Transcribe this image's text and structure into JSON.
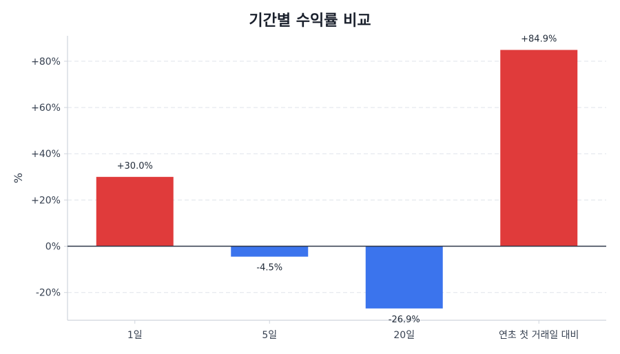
{
  "chart_data": {
    "type": "bar",
    "title": "기간별 수익률 비교",
    "xlabel": "",
    "ylabel": "%",
    "categories": [
      "1일",
      "5일",
      "20일",
      "연초 첫 거래일 대비"
    ],
    "values": [
      30.0,
      -4.5,
      -26.9,
      84.9
    ],
    "value_labels": [
      "+30.0%",
      "-4.5%",
      "-26.9%",
      "+84.9%"
    ],
    "yticks": [
      -20,
      0,
      20,
      40,
      60,
      80
    ],
    "ytick_labels": [
      "-20%",
      "0%",
      "+20%",
      "+40%",
      "+60%",
      "+80%"
    ],
    "ylim": [
      -32,
      91
    ],
    "grid": true,
    "legend": "none",
    "colors": {
      "positive": "#e03b3b",
      "negative": "#3b74ed",
      "zero_line": "#2d3748",
      "grid": "#dfe3ea",
      "axis": "#cfd4dc"
    }
  }
}
